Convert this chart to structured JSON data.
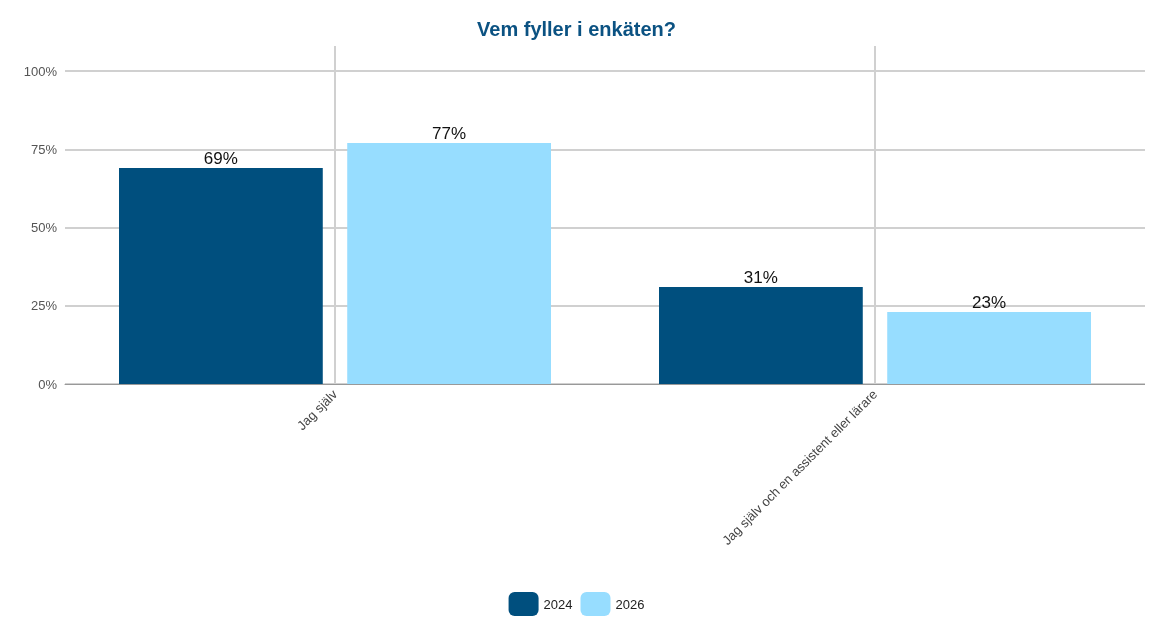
{
  "chart_data": {
    "type": "bar",
    "title": "Vem fyller i enkäten?",
    "categories": [
      "Jag själv",
      "Jag själv och en assistent eller lärare"
    ],
    "series": [
      {
        "name": "2024",
        "color": "#004f7e",
        "values": [
          69,
          31
        ],
        "value_labels": [
          "69%",
          "31%"
        ]
      },
      {
        "name": "2026",
        "color": "#97ddff",
        "values": [
          77,
          23
        ],
        "value_labels": [
          "77%",
          "23%"
        ]
      }
    ],
    "ylim": [
      0,
      108
    ],
    "yticks": [
      {
        "value": 0,
        "label": "0%"
      },
      {
        "value": 25,
        "label": "25%"
      },
      {
        "value": 50,
        "label": "50%"
      },
      {
        "value": 75,
        "label": "75%"
      },
      {
        "value": 100,
        "label": "100%"
      }
    ],
    "grid": true,
    "legend": "bottom"
  }
}
